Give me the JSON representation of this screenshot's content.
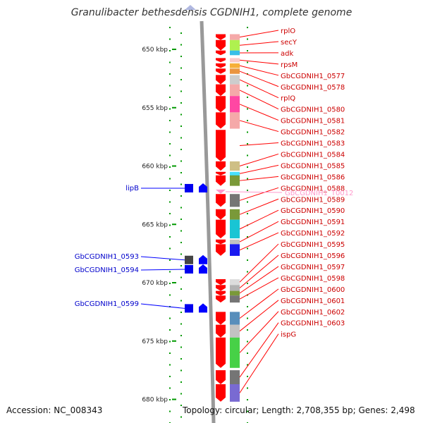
{
  "title": "Granulibacter bethesdensis CGDNIH1, complete genome",
  "footer": {
    "accession": "Accession: NC_008343",
    "topology": "Topology: circular; Length: 2,708,355 bp; Genes: 2,498"
  },
  "ruler": {
    "unit": "kbp",
    "ticks": [
      {
        "kbp": 650,
        "label": "650 kbp"
      },
      {
        "kbp": 655,
        "label": "655 kbp"
      },
      {
        "kbp": 660,
        "label": "660 kbp"
      },
      {
        "kbp": 665,
        "label": "665 kbp"
      },
      {
        "kbp": 670,
        "label": "670 kbp"
      },
      {
        "kbp": 675,
        "label": "675 kbp"
      },
      {
        "kbp": 680,
        "label": "680 kbp"
      }
    ]
  },
  "colors": {
    "forward_gene": "#ff0000",
    "forward_label": "#cc0000",
    "reverse_gene": "#0000ff",
    "reverse_label": "#0000cc",
    "trna": "#ff99cc",
    "backbone": "#999999",
    "tick": "#009900"
  },
  "forward_genes": [
    {
      "name": "rplO",
      "start": 648.7,
      "end": 649.2,
      "swatch": "#f4a0a0"
    },
    {
      "name": "secY",
      "start": 649.2,
      "end": 650.1,
      "swatch": "#a6f03c"
    },
    {
      "name": "adk",
      "start": 650.1,
      "end": 650.5,
      "swatch": "#22b8e6"
    },
    {
      "name": "rpsM",
      "start": 650.75,
      "end": 651.1,
      "swatch": "#f9c3c3"
    },
    {
      "name": "GbCGDNIH1_0577",
      "start": 651.2,
      "end": 651.6,
      "swatch": "#f5a623"
    },
    {
      "name": "GbCGDNIH1_0578",
      "start": 651.65,
      "end": 652.1,
      "swatch": "#e88a2b"
    },
    {
      "name": "rplQ",
      "start": 652.2,
      "end": 653.0,
      "swatch": "#c8c8c8"
    },
    {
      "name": "GbCGDNIH1_0580",
      "start": 653.0,
      "end": 654.0,
      "swatch": "#f4a0a0"
    },
    {
      "name": "GbCGDNIH1_0581",
      "start": 654.0,
      "end": 655.4,
      "swatch": "#ff3399"
    },
    {
      "name": "GbCGDNIH1_0582",
      "start": 655.4,
      "end": 656.8,
      "swatch": "#f4a0a0"
    },
    {
      "name": "GbCGDNIH1_0583",
      "start": 656.9,
      "end": 659.6,
      "swatch": "#ffffff"
    },
    {
      "name": "GbCGDNIH1_0584",
      "start": 659.6,
      "end": 660.4,
      "swatch": "#c9b878"
    },
    {
      "name": "GbCGDNIH1_0585",
      "start": 660.5,
      "end": 660.8,
      "swatch": "#33ddff"
    },
    {
      "name": "GbCGDNIH1_0586",
      "start": 660.8,
      "end": 661.7,
      "swatch": "#6b8e23"
    },
    {
      "name": "GbCGDNIH1_0588",
      "start": 662.4,
      "end": 663.5,
      "swatch": "#666666"
    },
    {
      "name": "GbCGDNIH1_0589",
      "start": 663.7,
      "end": 664.6,
      "swatch": "#6b8e23"
    },
    {
      "name": "GbCGDNIH1_0590",
      "start": 664.6,
      "end": 666.2,
      "swatch": "#00bfcf"
    },
    {
      "name": "GbCGDNIH1_0591",
      "start": 666.3,
      "end": 666.7,
      "swatch": "#bbbbbb"
    },
    {
      "name": "GbCGDNIH1_0592",
      "start": 666.7,
      "end": 667.7,
      "swatch": "#0000ee"
    },
    {
      "name": "GbCGDNIH1_0595",
      "start": 669.7,
      "end": 670.2,
      "swatch": "#d8d8d8"
    },
    {
      "name": "GbCGDNIH1_0596",
      "start": 670.2,
      "end": 670.7,
      "swatch": "#aaaaaa"
    },
    {
      "name": "GbCGDNIH1_0597",
      "start": 670.7,
      "end": 671.1,
      "swatch": "#6b8e23"
    },
    {
      "name": "GbCGDNIH1_0598",
      "start": 671.1,
      "end": 671.7,
      "swatch": "#666666"
    },
    {
      "name": "GbCGDNIH1_0600",
      "start": 672.5,
      "end": 673.6,
      "swatch": "#4682b4"
    },
    {
      "name": "GbCGDNIH1_0601",
      "start": 673.6,
      "end": 674.7,
      "swatch": "#bbbbbb"
    },
    {
      "name": "GbCGDNIH1_0602",
      "start": 674.7,
      "end": 677.3,
      "swatch": "#33cc33"
    },
    {
      "name": "GbCGDNIH1_0603",
      "start": 677.5,
      "end": 678.7,
      "swatch": "#666666"
    },
    {
      "name": "ispG",
      "start": 678.7,
      "end": 680.2,
      "swatch": "#6a5acd"
    }
  ],
  "reverse_genes": [
    {
      "name": "lipB",
      "start": 661.5,
      "end": 662.3,
      "swatch": "#0000ee"
    },
    {
      "name": "GbCGDNIH1_0593",
      "start": 667.6,
      "end": 668.5,
      "swatch": "#444444"
    },
    {
      "name": "GbCGDNIH1_0594",
      "start": 668.5,
      "end": 669.2,
      "swatch": "#0000ee"
    },
    {
      "name": "GbCGDNIH1_0599",
      "start": 671.8,
      "end": 672.6,
      "swatch": "#0000ee"
    }
  ],
  "trna_genes": [
    {
      "name": "GbCGDNIH1_T0012",
      "start": 662.1,
      "end": 662.3
    }
  ]
}
